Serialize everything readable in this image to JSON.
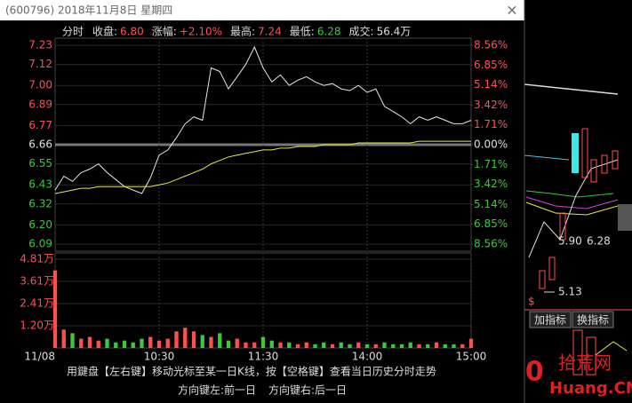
{
  "window": {
    "title": "(600796) 2018年11月8日 星期四",
    "close": "×",
    "hint": "用鍵盘【左右键】移动光标至某一日K线，按【空格键】查看当日历史分时走势",
    "nav_left": "方向键左:前一日",
    "nav_right": "方向键右:后一日"
  },
  "header": {
    "mode": "分时",
    "info": [
      {
        "label": "收盘:",
        "value": "6.80",
        "color": "#ff5050"
      },
      {
        "label": "涨幅:",
        "value": "+2.10%",
        "color": "#ff5050"
      },
      {
        "label": "最高:",
        "value": "7.24",
        "color": "#ff5050"
      },
      {
        "label": "最低:",
        "value": "6.28",
        "color": "#3cc83c"
      },
      {
        "label": "成交:",
        "value": "56.4万",
        "color": "#e0e0e0"
      }
    ]
  },
  "chart_data": [
    {
      "type": "line",
      "xlim": [
        0,
        240
      ],
      "ylim": [
        6.09,
        7.23
      ],
      "y2lim": [
        -8.56,
        8.56
      ],
      "grid": true,
      "up_color": "#ff5050",
      "down_color": "#3cc83c",
      "flat_color": "#e0e0e0",
      "yticks": [
        7.23,
        7.12,
        {
          "value": 7,
          "label": "7.00"
        },
        6.89,
        6.77,
        6.66,
        6.55,
        6.43,
        6.32,
        {
          "value": 6.2,
          "label": "6.20"
        },
        6.09
      ],
      "y2ticks": [
        {
          "value": 8.56,
          "label": "8.56%"
        },
        {
          "value": 6.85,
          "label": "6.85%"
        },
        {
          "value": 5.14,
          "label": "5.14%"
        },
        {
          "value": 3.42,
          "label": "3.42%"
        },
        {
          "value": 1.71,
          "label": "1.71%"
        },
        {
          "value": 0,
          "label": "0.00%"
        },
        {
          "value": -1.71,
          "label": "1.71%"
        },
        {
          "value": -3.42,
          "label": "3.42%"
        },
        {
          "value": -5.14,
          "label": "5.14%"
        },
        {
          "value": -6.85,
          "label": "6.85%"
        },
        {
          "value": -8.56,
          "label": "8.56%"
        }
      ],
      "x": [
        0,
        5,
        10,
        15,
        20,
        25,
        30,
        35,
        40,
        45,
        50,
        55,
        60,
        65,
        70,
        75,
        80,
        85,
        90,
        95,
        100,
        105,
        110,
        115,
        120,
        125,
        130,
        135,
        140,
        145,
        150,
        155,
        160,
        165,
        170,
        175,
        180,
        185,
        190,
        195,
        200,
        205,
        210,
        215,
        220,
        225,
        230,
        235,
        240
      ],
      "series": [
        {
          "color": "#e6e6e6",
          "values": [
            6.4,
            6.48,
            6.45,
            6.5,
            6.52,
            6.55,
            6.5,
            6.46,
            6.42,
            6.4,
            6.38,
            6.47,
            6.6,
            6.63,
            6.7,
            6.78,
            6.82,
            6.8,
            7.1,
            7.08,
            6.98,
            7.05,
            7.12,
            7.22,
            7.1,
            7.02,
            7.06,
            7.0,
            7.03,
            7.05,
            7.02,
            7.0,
            7.01,
            6.98,
            6.97,
            7.0,
            6.96,
            6.98,
            6.88,
            6.85,
            6.82,
            6.78,
            6.82,
            6.8,
            6.82,
            6.8,
            6.78,
            6.78,
            6.8
          ]
        },
        {
          "color": "#e8e84a",
          "values": [
            6.38,
            6.39,
            6.4,
            6.41,
            6.41,
            6.42,
            6.42,
            6.42,
            6.42,
            6.42,
            6.42,
            6.42,
            6.43,
            6.44,
            6.46,
            6.48,
            6.5,
            6.52,
            6.55,
            6.57,
            6.59,
            6.6,
            6.61,
            6.62,
            6.63,
            6.63,
            6.64,
            6.64,
            6.65,
            6.65,
            6.65,
            6.66,
            6.66,
            6.66,
            6.66,
            6.67,
            6.67,
            6.67,
            6.67,
            6.67,
            6.67,
            6.67,
            6.68,
            6.68,
            6.68,
            6.68,
            6.68,
            6.68,
            6.68
          ]
        }
      ]
    },
    {
      "type": "bar",
      "xlim": [
        0,
        240
      ],
      "ylim": [
        0,
        4.81
      ],
      "tick_color": "#ff5050",
      "yticks": [
        {
          "value": 1.2,
          "label": "1.20万"
        },
        {
          "value": 2.41,
          "label": "2.41万"
        },
        {
          "value": 3.61,
          "label": "3.61万"
        },
        {
          "value": 4.81,
          "label": "4.81万"
        }
      ],
      "xticks": [
        {
          "value": 0,
          "label": "11/08"
        },
        {
          "value": 60,
          "label": "10:30"
        },
        {
          "value": 120,
          "label": "11:30"
        },
        {
          "value": 180,
          "label": "14:00"
        },
        {
          "value": 240,
          "label": "15:00"
        }
      ],
      "x": [
        0,
        5,
        10,
        15,
        20,
        25,
        30,
        35,
        40,
        45,
        50,
        55,
        60,
        65,
        70,
        75,
        80,
        85,
        90,
        95,
        100,
        105,
        110,
        115,
        120,
        125,
        130,
        135,
        140,
        145,
        150,
        155,
        160,
        165,
        170,
        175,
        180,
        185,
        190,
        195,
        200,
        205,
        210,
        215,
        220,
        225,
        230,
        235,
        240
      ],
      "values": [
        4.2,
        1.0,
        0.8,
        0.5,
        0.6,
        0.4,
        0.5,
        0.3,
        0.4,
        0.3,
        0.5,
        0.6,
        0.4,
        0.5,
        0.9,
        1.1,
        0.9,
        0.7,
        0.6,
        0.8,
        0.4,
        0.5,
        0.3,
        0.3,
        0.6,
        0.4,
        0.3,
        0.3,
        0.2,
        0.3,
        0.2,
        0.3,
        0.2,
        0.3,
        0.2,
        0.3,
        0.2,
        0.2,
        0.3,
        0.2,
        0.2,
        0.3,
        0.2,
        0.2,
        0.3,
        0.2,
        0.2,
        0.2,
        0.5
      ]
    }
  ],
  "background": {
    "buttons": [
      "加指标",
      "换指标"
    ],
    "label_a": "5.90",
    "label_b": "6.28",
    "label_c": "5.13",
    "label_d": "$",
    "logo_num": "10",
    "logo_name": "拾荒网",
    "logo_site": "Huang.CN"
  }
}
